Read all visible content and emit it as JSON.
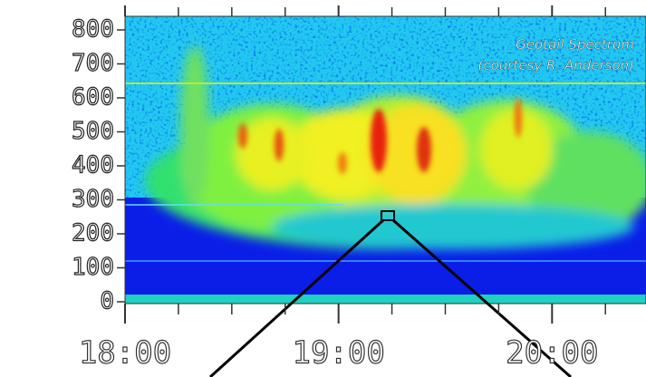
{
  "chart_data": {
    "type": "spectrogram",
    "annotation": [
      "Geotail Spectrum",
      "(courtesy R. Anderson)"
    ],
    "xlim": [
      18,
      20.44
    ],
    "xticks": [
      {
        "value": 18,
        "label": "18:00"
      },
      {
        "value": 19,
        "label": "19:00"
      },
      {
        "value": 20,
        "label": "20:00"
      }
    ],
    "xminorticks": [
      18.25,
      18.5,
      18.75,
      19.25,
      19.5,
      19.75,
      20.25
    ],
    "ylim": [
      0,
      840
    ],
    "yticks": [
      0,
      100,
      200,
      300,
      400,
      500,
      600,
      700,
      800
    ]
  }
}
